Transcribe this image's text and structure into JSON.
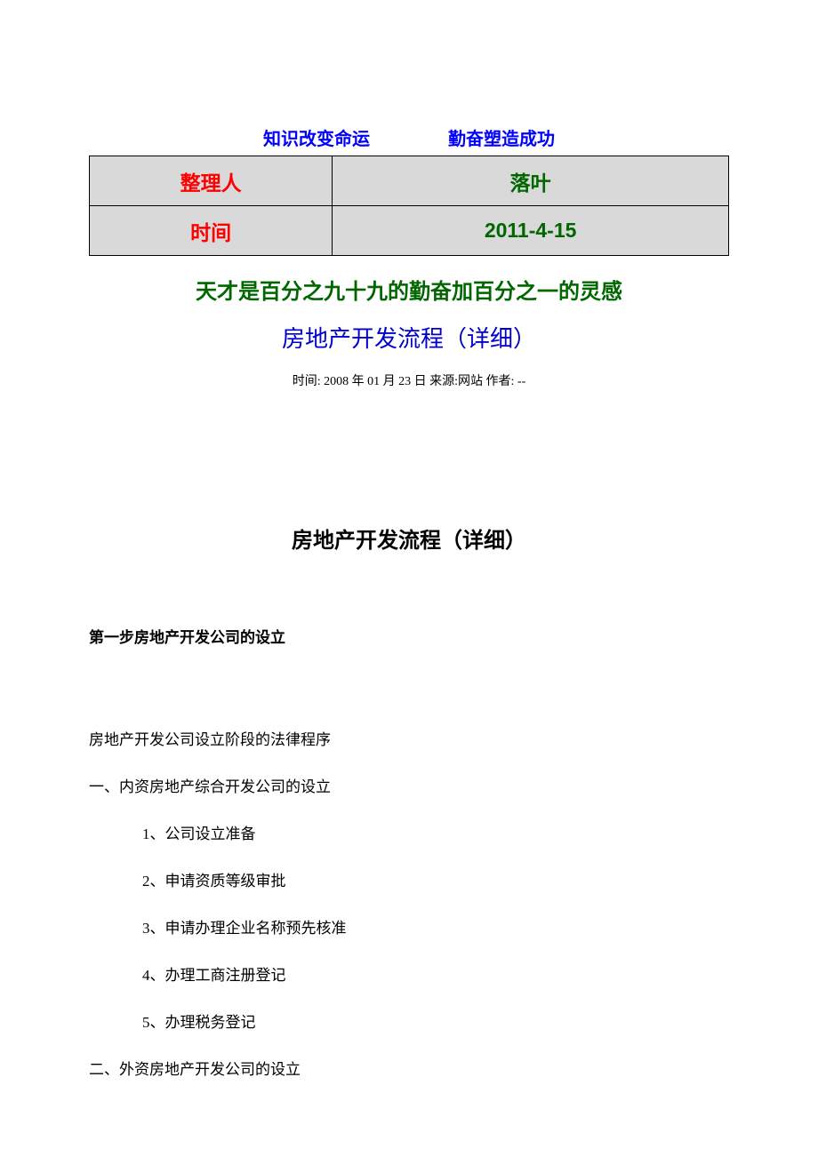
{
  "header": {
    "motto_left": "知识改变命运",
    "motto_right": "勤奋塑造成功",
    "table": {
      "row1_label": "整理人",
      "row1_value": "落叶",
      "row2_label": "时间",
      "row2_value": "2011-4-15"
    },
    "quote": "天才是百分之九十九的勤奋加百分之一的灵感"
  },
  "document": {
    "title_top": "房地产开发流程（详细）",
    "meta": "时间: 2008 年 01 月 23 日  来源:网站  作者: --",
    "section_title": "房地产开发流程（详细）",
    "step_heading": "第一步房地产开发公司的设立",
    "intro": "房地产开发公司设立阶段的法律程序",
    "part1_heading": "一、内资房地产综合开发公司的设立",
    "items": [
      "1、公司设立准备",
      "2、申请资质等级审批",
      "3、申请办理企业名称预先核准",
      "4、办理工商注册登记",
      "5、办理税务登记"
    ],
    "part2_heading": "二、外资房地产开发公司的设立"
  },
  "styles": {
    "motto_color": "#0000ff",
    "label_color": "#ff0000",
    "value_color": "#006600",
    "title_color": "#0000cc",
    "table_bg": "#d9d9d9",
    "table_border": "#000000",
    "text_color": "#000000",
    "page_bg": "#ffffff"
  }
}
